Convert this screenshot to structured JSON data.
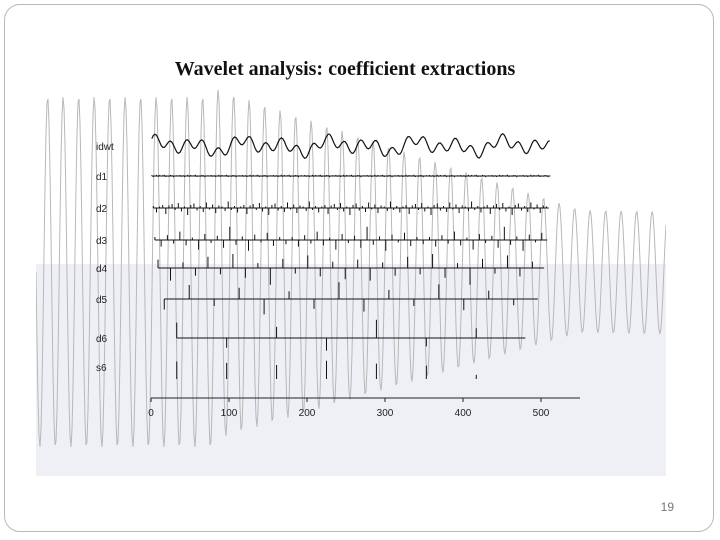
{
  "slide": {
    "title": "Wavelet analysis: coefficient extractions",
    "page_number": "19"
  },
  "colors": {
    "trace": "#111111",
    "background_wave": "#b8b8b8",
    "lower_band": "#eef0f6",
    "frame": "#b9b9b9"
  },
  "chart_data": {
    "type": "line",
    "title": "Wavelet analysis: coefficient extractions",
    "xlabel": "",
    "ylabel": "",
    "xlim": [
      0,
      550
    ],
    "x_ticks": [
      0,
      100,
      200,
      300,
      400,
      500
    ],
    "x_tick_labels": [
      "0",
      "100",
      "200",
      "300",
      "400",
      "500"
    ],
    "series": [
      {
        "name": "idwt",
        "kind": "signal",
        "start": 1,
        "end": 512,
        "amplitude": 1.0
      },
      {
        "name": "d1",
        "kind": "spikes",
        "start": 1,
        "end": 512,
        "step": 2,
        "values": [
          0.3,
          -0.4,
          0.2,
          0.5,
          -0.3,
          0.4,
          -0.2,
          0.3,
          0.5,
          -0.4,
          0.2,
          -0.3,
          0.4,
          0.3,
          -0.5,
          0.2,
          0.3,
          -0.2,
          0.4,
          -0.3
        ]
      },
      {
        "name": "d2",
        "kind": "spikes",
        "start": 3,
        "end": 510,
        "step": 4,
        "values": [
          0.4,
          -0.9,
          0.3,
          0.6,
          -1.2,
          0.5,
          0.8,
          -0.4,
          1.0,
          -0.7,
          0.3,
          -1.4,
          0.6,
          0.9,
          -0.5,
          0.4,
          -0.8,
          1.1,
          -0.3,
          0.7,
          -1.0,
          0.5,
          0.3,
          -0.6,
          1.3,
          -0.4
        ]
      },
      {
        "name": "d3",
        "kind": "spikes",
        "start": 5,
        "end": 508,
        "step": 8,
        "values": [
          0.5,
          -1.1,
          0.8,
          -0.6,
          1.4,
          -0.9,
          0.4,
          -1.6,
          1.0,
          -0.5,
          0.7,
          -1.3,
          2.2,
          -0.8,
          0.6,
          -1.8,
          0.9,
          -0.4,
          1.2,
          -1.0,
          0.5,
          -0.7
        ]
      },
      {
        "name": "d4",
        "kind": "spikes",
        "start": 9,
        "end": 504,
        "step": 16,
        "values": [
          1.2,
          -1.8,
          0.8,
          -1.1,
          1.6,
          -0.9,
          2.0,
          -1.4,
          0.7,
          -2.4,
          1.3,
          -0.8,
          1.8,
          -1.2,
          0.9,
          -1.6
        ]
      },
      {
        "name": "d5",
        "kind": "spikes",
        "start": 17,
        "end": 496,
        "step": 32,
        "values": [
          -1.5,
          2.0,
          -1.0,
          1.6,
          -2.2,
          1.1,
          -1.4,
          2.4,
          -1.8,
          1.3,
          -1.0,
          2.1,
          -1.6,
          1.2,
          -0.9,
          1.5
        ]
      },
      {
        "name": "d6",
        "kind": "spikes",
        "start": 33,
        "end": 480,
        "step": 64,
        "values": [
          2.2,
          -1.4,
          1.6,
          -1.8,
          2.6,
          -1.2,
          1.4,
          -0.8
        ]
      },
      {
        "name": "s6",
        "kind": "spikes",
        "start": 33,
        "end": 480,
        "step": 64,
        "values": [
          2.5,
          2.3,
          2.0,
          2.6,
          2.2,
          1.9,
          0.6,
          0.5
        ]
      }
    ],
    "grid": false,
    "legend": "none"
  }
}
